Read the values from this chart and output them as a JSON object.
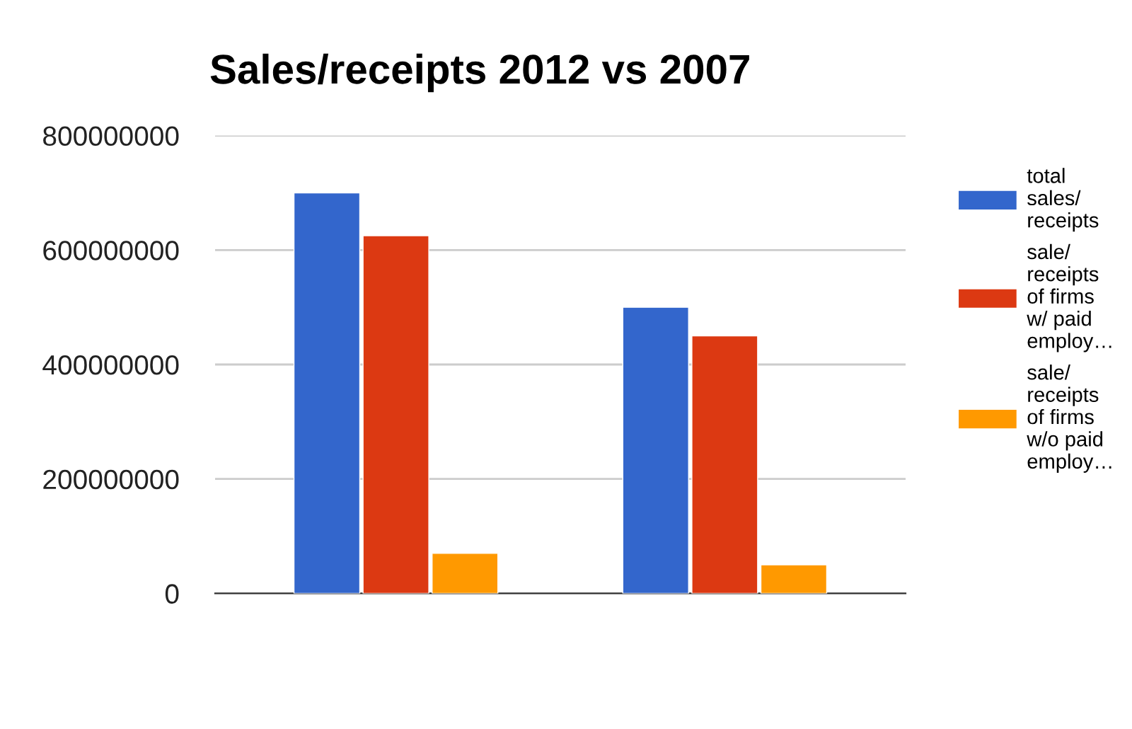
{
  "chart_data": {
    "type": "bar",
    "title": "Sales/receipts 2012 vs 2007",
    "categories": [
      null,
      null
    ],
    "series": [
      {
        "name": "total\nsales/\nreceipts",
        "color": "#3366cc",
        "values": [
          700000000,
          500000000
        ]
      },
      {
        "name": "sale/\nreceipts\nof firms\nw/ paid\nemploy…",
        "color": "#dc3912",
        "values": [
          625000000,
          450000000
        ]
      },
      {
        "name": "sale/\nreceipts\nof firms\nw/o paid\nemploy…",
        "color": "#ff9900",
        "values": [
          70000000,
          50000000
        ]
      }
    ],
    "ylim": [
      0,
      800000000
    ],
    "yticks": [
      0,
      200000000,
      400000000,
      600000000,
      800000000
    ],
    "grid": "y",
    "legend": "right"
  }
}
